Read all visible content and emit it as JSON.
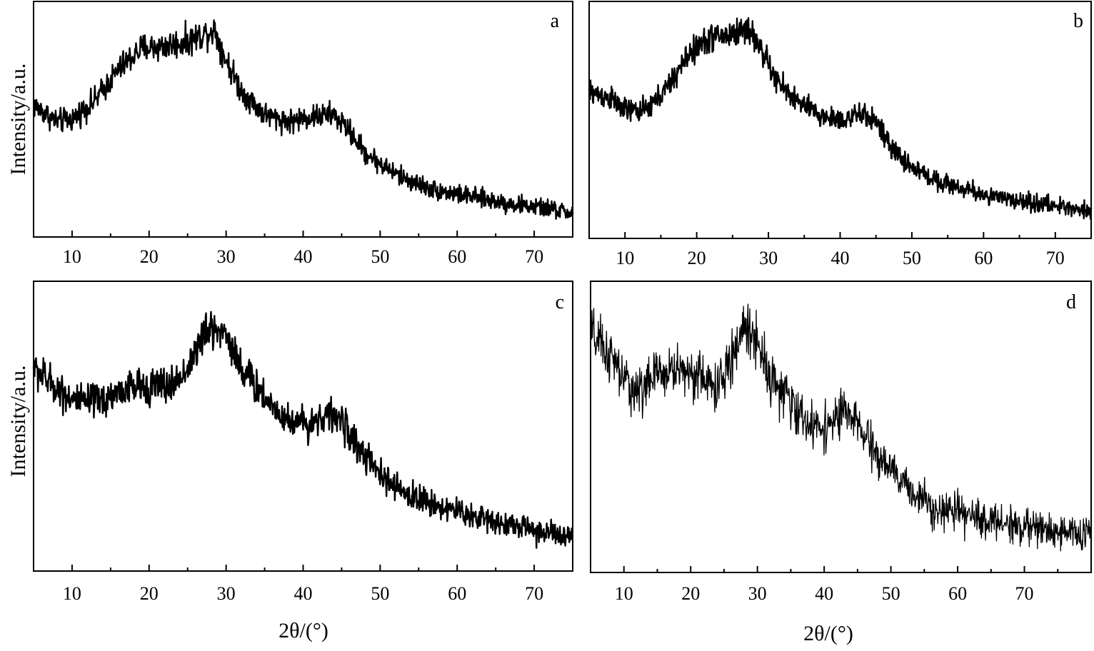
{
  "chart_data": [
    {
      "type": "line",
      "panel_label": "a",
      "ylabel": "Intensity/a.u.",
      "xlabel": "",
      "xlim": [
        5,
        75
      ],
      "xticks": [
        10,
        20,
        30,
        40,
        50,
        60,
        70
      ],
      "grid": false,
      "legend": "none",
      "noise": 0.085,
      "series_color": "#000000",
      "line_width": 2.4,
      "profile": [
        [
          5,
          0.56
        ],
        [
          8,
          0.49
        ],
        [
          10,
          0.5
        ],
        [
          13,
          0.58
        ],
        [
          16,
          0.71
        ],
        [
          19,
          0.8
        ],
        [
          22,
          0.81
        ],
        [
          25,
          0.83
        ],
        [
          27,
          0.86
        ],
        [
          28.5,
          0.88
        ],
        [
          30,
          0.75
        ],
        [
          32,
          0.62
        ],
        [
          35,
          0.52
        ],
        [
          38,
          0.49
        ],
        [
          41,
          0.51
        ],
        [
          44,
          0.52
        ],
        [
          46,
          0.45
        ],
        [
          48,
          0.36
        ],
        [
          50,
          0.31
        ],
        [
          53,
          0.25
        ],
        [
          57,
          0.2
        ],
        [
          62,
          0.17
        ],
        [
          67,
          0.14
        ],
        [
          72,
          0.12
        ],
        [
          75,
          0.1
        ]
      ]
    },
    {
      "type": "line",
      "panel_label": "b",
      "ylabel": "",
      "xlabel": "",
      "xlim": [
        5,
        75
      ],
      "xticks": [
        10,
        20,
        30,
        40,
        50,
        60,
        70
      ],
      "grid": false,
      "legend": "none",
      "noise": 0.08,
      "series_color": "#000000",
      "line_width": 2.4,
      "profile": [
        [
          5,
          0.62
        ],
        [
          8,
          0.59
        ],
        [
          10,
          0.54
        ],
        [
          13,
          0.54
        ],
        [
          16,
          0.64
        ],
        [
          19,
          0.78
        ],
        [
          22,
          0.85
        ],
        [
          25,
          0.86
        ],
        [
          27,
          0.89
        ],
        [
          29,
          0.8
        ],
        [
          31,
          0.67
        ],
        [
          34,
          0.58
        ],
        [
          37,
          0.52
        ],
        [
          40,
          0.5
        ],
        [
          43,
          0.52
        ],
        [
          45,
          0.5
        ],
        [
          47,
          0.38
        ],
        [
          50,
          0.3
        ],
        [
          53,
          0.25
        ],
        [
          57,
          0.21
        ],
        [
          62,
          0.17
        ],
        [
          67,
          0.15
        ],
        [
          72,
          0.13
        ],
        [
          75,
          0.12
        ]
      ]
    },
    {
      "type": "line",
      "panel_label": "c",
      "ylabel": "Intensity/a.u.",
      "xlabel": "2θ/(°)",
      "xlim": [
        5,
        75
      ],
      "xticks": [
        10,
        20,
        30,
        40,
        50,
        60,
        70
      ],
      "grid": false,
      "legend": "none",
      "noise": 0.095,
      "series_color": "#000000",
      "line_width": 2.4,
      "profile": [
        [
          5,
          0.7
        ],
        [
          8,
          0.63
        ],
        [
          11,
          0.58
        ],
        [
          14,
          0.59
        ],
        [
          17,
          0.63
        ],
        [
          20,
          0.64
        ],
        [
          23,
          0.64
        ],
        [
          25,
          0.7
        ],
        [
          27,
          0.81
        ],
        [
          28.5,
          0.84
        ],
        [
          30,
          0.82
        ],
        [
          32,
          0.7
        ],
        [
          35,
          0.6
        ],
        [
          38,
          0.52
        ],
        [
          41,
          0.51
        ],
        [
          43,
          0.54
        ],
        [
          45,
          0.52
        ],
        [
          47,
          0.43
        ],
        [
          50,
          0.33
        ],
        [
          53,
          0.27
        ],
        [
          57,
          0.23
        ],
        [
          62,
          0.19
        ],
        [
          67,
          0.16
        ],
        [
          72,
          0.13
        ],
        [
          75,
          0.11
        ]
      ]
    },
    {
      "type": "line",
      "panel_label": "d",
      "ylabel": "",
      "xlabel": "2θ/(°)",
      "xlim": [
        5,
        80
      ],
      "xticks": [
        10,
        20,
        30,
        40,
        50,
        60,
        70
      ],
      "grid": false,
      "legend": "none",
      "noise": 0.13,
      "series_color": "#000000",
      "line_width": 1.3,
      "profile": [
        [
          5,
          0.82
        ],
        [
          8,
          0.74
        ],
        [
          10,
          0.66
        ],
        [
          12,
          0.62
        ],
        [
          15,
          0.68
        ],
        [
          18,
          0.7
        ],
        [
          21,
          0.68
        ],
        [
          24,
          0.63
        ],
        [
          26,
          0.72
        ],
        [
          28,
          0.85
        ],
        [
          30,
          0.8
        ],
        [
          32,
          0.67
        ],
        [
          35,
          0.58
        ],
        [
          38,
          0.5
        ],
        [
          41,
          0.51
        ],
        [
          43,
          0.55
        ],
        [
          45,
          0.51
        ],
        [
          47,
          0.43
        ],
        [
          50,
          0.35
        ],
        [
          53,
          0.28
        ],
        [
          57,
          0.22
        ],
        [
          62,
          0.19
        ],
        [
          67,
          0.17
        ],
        [
          72,
          0.15
        ],
        [
          76,
          0.14
        ],
        [
          80,
          0.13
        ]
      ]
    }
  ]
}
